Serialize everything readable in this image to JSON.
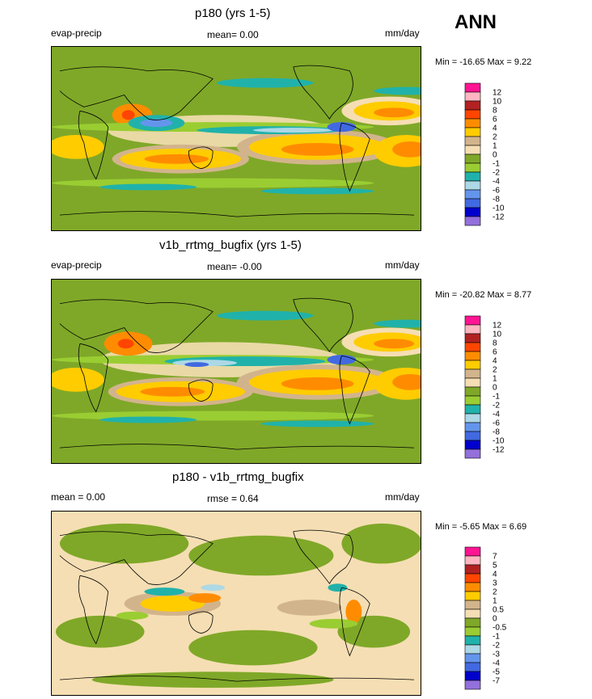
{
  "season": "ANN",
  "units": "mm/day",
  "panels": [
    {
      "title": "p180 (yrs 1-5)",
      "left_label": "evap-precip",
      "mean_label": "mean=  0.00",
      "units": "mm/day",
      "minmax": "Min = -16.65 Max =   9.22",
      "colorbar": {
        "labels": [
          "12",
          "10",
          "8",
          "6",
          "4",
          "2",
          "1",
          "0",
          "-1",
          "-2",
          "-4",
          "-6",
          "-8",
          "-10",
          "-12"
        ],
        "colors": [
          "#ff1493",
          "#ffb6c1",
          "#b22222",
          "#ff4500",
          "#ff8c00",
          "#ffcc00",
          "#d2b48c",
          "#f5deb3",
          "#7fa828",
          "#9acd32",
          "#20b2aa",
          "#add8e6",
          "#6495ed",
          "#4169e1",
          "#0000cd",
          "#9370db"
        ]
      }
    },
    {
      "title": "v1b_rrtmg_bugfix (yrs 1-5)",
      "left_label": "evap-precip",
      "mean_label": "mean=  -0.00",
      "units": "mm/day",
      "minmax": "Min = -20.82 Max =   8.77",
      "colorbar": {
        "labels": [
          "12",
          "10",
          "8",
          "6",
          "4",
          "2",
          "1",
          "0",
          "-1",
          "-2",
          "-4",
          "-6",
          "-8",
          "-10",
          "-12"
        ],
        "colors": [
          "#ff1493",
          "#ffb6c1",
          "#b22222",
          "#ff4500",
          "#ff8c00",
          "#ffcc00",
          "#d2b48c",
          "#f5deb3",
          "#7fa828",
          "#9acd32",
          "#20b2aa",
          "#add8e6",
          "#6495ed",
          "#4169e1",
          "#0000cd",
          "#9370db"
        ]
      }
    },
    {
      "title": "p180 - v1b_rrtmg_bugfix",
      "left_label": "mean =   0.00",
      "mean_label": "rmse =   0.64",
      "units": "mm/day",
      "minmax": "Min =  -5.65 Max =   6.69",
      "colorbar": {
        "labels": [
          "7",
          "5",
          "4",
          "3",
          "2",
          "1",
          "0.5",
          "0",
          "-0.5",
          "-1",
          "-2",
          "-3",
          "-4",
          "-5",
          "-7"
        ],
        "colors": [
          "#ff1493",
          "#ffb6c1",
          "#b22222",
          "#ff4500",
          "#ff8c00",
          "#ffcc00",
          "#d2b48c",
          "#f5deb3",
          "#7fa828",
          "#9acd32",
          "#20b2aa",
          "#add8e6",
          "#6495ed",
          "#4169e1",
          "#0000cd",
          "#9370db"
        ]
      }
    }
  ],
  "chart_data": [
    {
      "type": "heatmap",
      "title": "p180 (yrs 1-5)",
      "variable": "evap-precip",
      "units": "mm/day",
      "mean": 0.0,
      "min": -16.65,
      "max": 9.22,
      "levels": [
        -12,
        -10,
        -8,
        -6,
        -4,
        -2,
        -1,
        0,
        1,
        2,
        4,
        6,
        8,
        10,
        12
      ]
    },
    {
      "type": "heatmap",
      "title": "v1b_rrtmg_bugfix (yrs 1-5)",
      "variable": "evap-precip",
      "units": "mm/day",
      "mean": -0.0,
      "min": -20.82,
      "max": 8.77,
      "levels": [
        -12,
        -10,
        -8,
        -6,
        -4,
        -2,
        -1,
        0,
        1,
        2,
        4,
        6,
        8,
        10,
        12
      ]
    },
    {
      "type": "heatmap",
      "title": "p180 - v1b_rrtmg_bugfix",
      "units": "mm/day",
      "mean": 0.0,
      "rmse": 0.64,
      "min": -5.65,
      "max": 6.69,
      "levels": [
        -7,
        -5,
        -4,
        -3,
        -2,
        -1,
        -0.5,
        0,
        0.5,
        1,
        2,
        3,
        4,
        5,
        7
      ]
    }
  ]
}
